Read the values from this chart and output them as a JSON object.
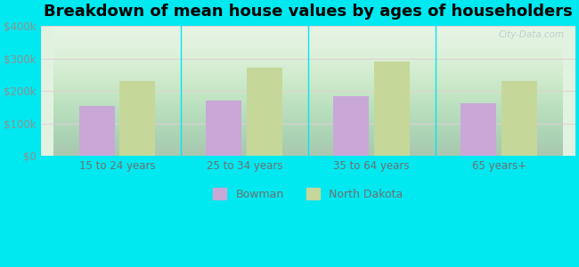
{
  "title": "Breakdown of mean house values by ages of householders",
  "categories": [
    "15 to 24 years",
    "25 to 34 years",
    "35 to 64 years",
    "65 years+"
  ],
  "bowman_values": [
    155000,
    170000,
    185000,
    163000
  ],
  "nd_values": [
    232000,
    272000,
    291000,
    232000
  ],
  "bowman_color": "#c9a8d8",
  "nd_color": "#c5d89a",
  "background_color": "#00e8f0",
  "ytick_color": "#909090",
  "xtick_color": "#707070",
  "ylim": [
    0,
    400000
  ],
  "yticks": [
    0,
    100000,
    200000,
    300000,
    400000
  ],
  "ytick_labels": [
    "$0",
    "$100k",
    "$200k",
    "$300k",
    "$400k"
  ],
  "bar_width": 0.28,
  "legend_bowman": "Bowman",
  "legend_nd": "North Dakota",
  "watermark": "City-Data.com",
  "title_fontsize": 13,
  "tick_fontsize": 8.5,
  "legend_fontsize": 9
}
